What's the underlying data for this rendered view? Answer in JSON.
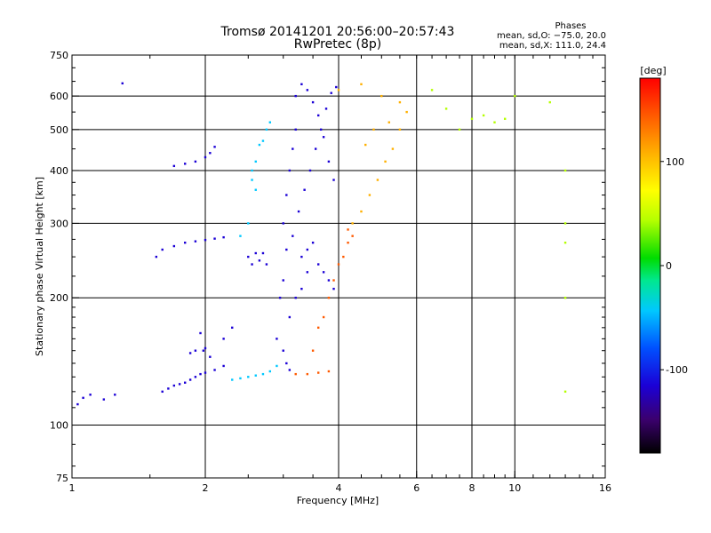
{
  "header": {
    "title_line1": "Tromsø 20141201 20:56:00–20:57:43",
    "title_line2": "RwPretec (8p)",
    "stats_title": "Phases",
    "stats_o": "mean, sd,O: −75.0, 20.0",
    "stats_x": "mean, sd,X: 111.0, 24.4"
  },
  "chart_data": {
    "type": "scatter",
    "xlabel": "Frequency [MHz]",
    "ylabel": "Stationary phase Virtual Height [km]",
    "x_scale": "log",
    "y_scale": "log",
    "xlim": [
      1,
      16
    ],
    "ylim": [
      75,
      750
    ],
    "x_ticks": [
      1,
      2,
      4,
      6,
      8,
      10,
      16
    ],
    "y_ticks": [
      75,
      100,
      200,
      300,
      400,
      500,
      600,
      750
    ],
    "grid_x": [
      2,
      4,
      6,
      8,
      10
    ],
    "grid_y": [
      100,
      200,
      300,
      400,
      500,
      600
    ],
    "colorbar": {
      "label": "[deg]",
      "range": [
        -180,
        180
      ],
      "ticks": [
        100,
        0,
        -100
      ],
      "colormap": [
        "#000000",
        "#3b006e",
        "#1b00d6",
        "#0050ff",
        "#00c8ff",
        "#00e890",
        "#00dc00",
        "#b4ff00",
        "#ffff00",
        "#ffb000",
        "#ff5a00",
        "#ff0000"
      ]
    },
    "series": [
      {
        "color_deg": -120,
        "points": [
          [
            1.03,
            112
          ],
          [
            1.06,
            116
          ],
          [
            1.1,
            118
          ],
          [
            1.18,
            115
          ],
          [
            1.25,
            118
          ],
          [
            1.3,
            643
          ],
          [
            1.55,
            250
          ],
          [
            1.6,
            260
          ],
          [
            1.6,
            120
          ],
          [
            1.65,
            122
          ],
          [
            1.7,
            124
          ],
          [
            1.75,
            125
          ],
          [
            1.8,
            126
          ],
          [
            1.85,
            128
          ],
          [
            1.9,
            130
          ],
          [
            1.95,
            132
          ],
          [
            2.0,
            133
          ],
          [
            2.1,
            135
          ],
          [
            2.2,
            138
          ],
          [
            1.7,
            265
          ],
          [
            1.8,
            270
          ],
          [
            1.9,
            272
          ],
          [
            2.0,
            274
          ],
          [
            2.1,
            276
          ],
          [
            2.2,
            278
          ],
          [
            1.7,
            410
          ],
          [
            1.8,
            415
          ],
          [
            1.9,
            420
          ],
          [
            2.0,
            430
          ],
          [
            2.05,
            440
          ],
          [
            2.1,
            455
          ],
          [
            1.85,
            148
          ],
          [
            1.9,
            150
          ],
          [
            2.0,
            152
          ],
          [
            2.05,
            145
          ],
          [
            1.98,
            150
          ],
          [
            1.95,
            165
          ],
          [
            2.2,
            160
          ],
          [
            2.3,
            170
          ]
        ]
      },
      {
        "color_deg": -100,
        "points": [
          [
            2.5,
            250
          ],
          [
            2.6,
            255
          ],
          [
            2.7,
            255
          ],
          [
            2.55,
            240
          ],
          [
            2.65,
            245
          ],
          [
            2.75,
            240
          ],
          [
            2.9,
            160
          ],
          [
            3.0,
            150
          ],
          [
            3.05,
            140
          ],
          [
            3.1,
            135
          ],
          [
            3.0,
            300
          ],
          [
            3.05,
            350
          ],
          [
            3.1,
            400
          ],
          [
            3.15,
            450
          ],
          [
            3.2,
            500
          ],
          [
            3.2,
            600
          ],
          [
            3.3,
            640
          ],
          [
            3.4,
            620
          ],
          [
            3.5,
            580
          ],
          [
            3.6,
            540
          ],
          [
            3.7,
            480
          ],
          [
            3.8,
            420
          ],
          [
            3.9,
            380
          ],
          [
            3.3,
            250
          ],
          [
            3.4,
            260
          ],
          [
            3.5,
            270
          ],
          [
            3.6,
            240
          ],
          [
            3.7,
            230
          ],
          [
            3.8,
            220
          ],
          [
            3.9,
            210
          ],
          [
            3.1,
            180
          ],
          [
            3.2,
            200
          ],
          [
            3.3,
            210
          ],
          [
            3.4,
            230
          ],
          [
            3.0,
            220
          ],
          [
            2.95,
            200
          ],
          [
            3.05,
            260
          ],
          [
            3.15,
            280
          ],
          [
            3.25,
            320
          ],
          [
            3.35,
            360
          ],
          [
            3.45,
            400
          ],
          [
            3.55,
            450
          ],
          [
            3.65,
            500
          ],
          [
            3.75,
            560
          ],
          [
            3.85,
            610
          ],
          [
            3.95,
            630
          ]
        ]
      },
      {
        "color_deg": -40,
        "points": [
          [
            2.55,
            400
          ],
          [
            2.6,
            420
          ],
          [
            2.65,
            460
          ],
          [
            2.7,
            470
          ],
          [
            2.75,
            500
          ],
          [
            2.8,
            520
          ],
          [
            2.55,
            380
          ],
          [
            2.6,
            360
          ],
          [
            2.5,
            300
          ],
          [
            2.4,
            280
          ],
          [
            2.3,
            128
          ],
          [
            2.4,
            129
          ],
          [
            2.5,
            130
          ],
          [
            2.6,
            131
          ],
          [
            2.7,
            132
          ],
          [
            2.8,
            134
          ],
          [
            2.9,
            138
          ]
        ]
      },
      {
        "color_deg": 120,
        "points": [
          [
            4.3,
            300
          ],
          [
            4.5,
            320
          ],
          [
            4.7,
            350
          ],
          [
            4.9,
            380
          ],
          [
            5.1,
            420
          ],
          [
            5.3,
            450
          ],
          [
            5.5,
            500
          ],
          [
            5.7,
            550
          ],
          [
            4.0,
            620
          ],
          [
            4.5,
            640
          ],
          [
            5.0,
            600
          ],
          [
            5.5,
            580
          ],
          [
            5.2,
            520
          ],
          [
            4.8,
            500
          ],
          [
            4.6,
            460
          ]
        ]
      },
      {
        "color_deg": 160,
        "points": [
          [
            3.2,
            132
          ],
          [
            3.4,
            132
          ],
          [
            3.6,
            133
          ],
          [
            3.8,
            134
          ],
          [
            3.5,
            150
          ],
          [
            3.6,
            170
          ],
          [
            3.7,
            180
          ],
          [
            3.8,
            200
          ],
          [
            3.9,
            220
          ],
          [
            4.0,
            240
          ],
          [
            4.1,
            250
          ],
          [
            4.2,
            270
          ],
          [
            4.3,
            280
          ],
          [
            4.2,
            290
          ]
        ]
      },
      {
        "color_deg": 40,
        "points": [
          [
            8.0,
            530
          ],
          [
            8.5,
            540
          ],
          [
            9.0,
            520
          ],
          [
            9.5,
            530
          ],
          [
            10.0,
            600
          ],
          [
            12.0,
            580
          ],
          [
            13.0,
            400
          ],
          [
            13.0,
            300
          ],
          [
            13.0,
            270
          ],
          [
            13.0,
            200
          ],
          [
            13.0,
            120
          ],
          [
            6.5,
            620
          ],
          [
            7.0,
            560
          ],
          [
            7.5,
            500
          ]
        ]
      }
    ]
  }
}
